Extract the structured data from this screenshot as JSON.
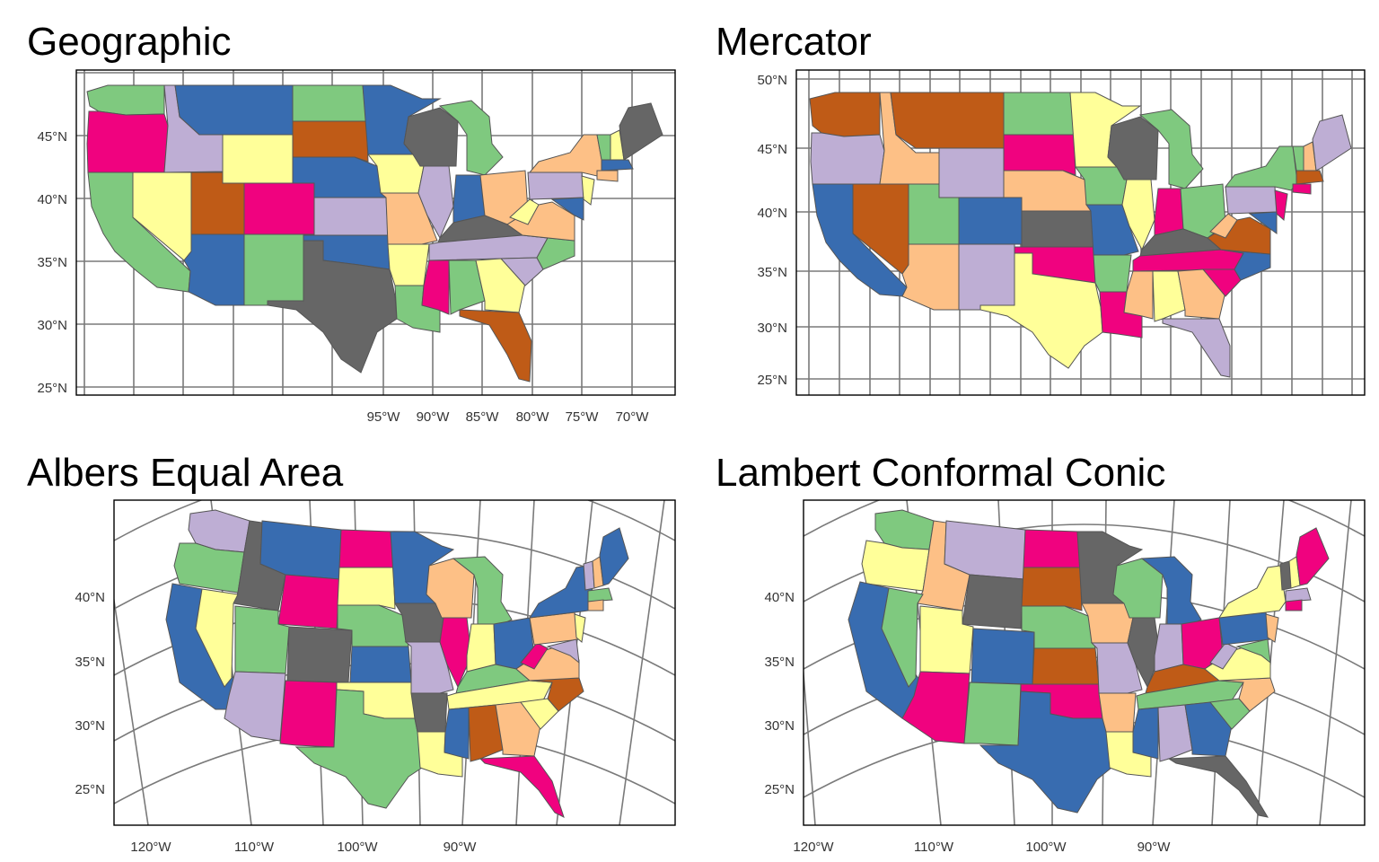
{
  "panels": [
    {
      "title": "Geographic",
      "lat_labels": [
        "45°N",
        "40°N",
        "35°N",
        "30°N",
        "25°N"
      ],
      "lon_labels": [
        "95°W",
        "90°W",
        "85°W",
        "80°W",
        "75°W",
        "70°W"
      ]
    },
    {
      "title": "Mercator",
      "lat_labels": [
        "50°N",
        "45°N",
        "40°N",
        "35°N",
        "30°N",
        "25°N"
      ],
      "lon_labels": []
    },
    {
      "title": "Albers Equal Area",
      "lat_labels": [
        "40°N",
        "35°N",
        "30°N",
        "25°N"
      ],
      "lon_labels": [
        "120°W",
        "110°W",
        "100°W",
        "90°W"
      ]
    },
    {
      "title": "Lambert Conformal Conic",
      "lat_labels": [
        "40°N",
        "35°N",
        "30°N",
        "25°N"
      ],
      "lon_labels": [
        "120°W",
        "110°W",
        "100°W",
        "90°W"
      ]
    }
  ],
  "palette": [
    "#7fc97f",
    "#beaed4",
    "#fdc086",
    "#ffff99",
    "#386cb0",
    "#f0027f",
    "#bf5b17",
    "#666666"
  ],
  "colors": {
    "graticule": "#7a7a7a",
    "state_border": "#555555",
    "frame": "#000000"
  }
}
